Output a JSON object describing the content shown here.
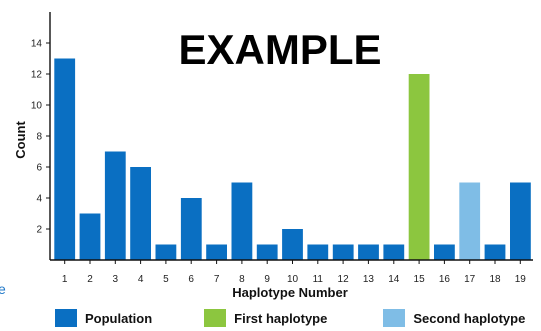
{
  "chart_data": {
    "type": "bar",
    "title": "",
    "watermark": "EXAMPLE",
    "xlabel": "Haplotype Number",
    "ylabel": "Count",
    "categories": [
      "1",
      "2",
      "3",
      "4",
      "5",
      "6",
      "7",
      "8",
      "9",
      "10",
      "11",
      "12",
      "13",
      "14",
      "15",
      "16",
      "17",
      "18",
      "19"
    ],
    "values": [
      13,
      3,
      7,
      6,
      1,
      4,
      1,
      5,
      1,
      2,
      1,
      1,
      1,
      1,
      12,
      1,
      5,
      1,
      5
    ],
    "bar_groups": [
      "population",
      "population",
      "population",
      "population",
      "population",
      "population",
      "population",
      "population",
      "population",
      "population",
      "population",
      "population",
      "population",
      "population",
      "first",
      "population",
      "second",
      "population",
      "population"
    ],
    "yticks": [
      2,
      4,
      6,
      8,
      10,
      12,
      14
    ],
    "ylim": [
      0,
      16
    ],
    "grid": false,
    "legend_position": "bottom",
    "legend": [
      {
        "key": "population",
        "label": "Population",
        "color": "#0a6fc2"
      },
      {
        "key": "first",
        "label": "First haplotype",
        "color": "#8cc63f"
      },
      {
        "key": "second",
        "label": "Second haplotype",
        "color": "#7fbde6"
      }
    ]
  },
  "edge_mark": "e"
}
